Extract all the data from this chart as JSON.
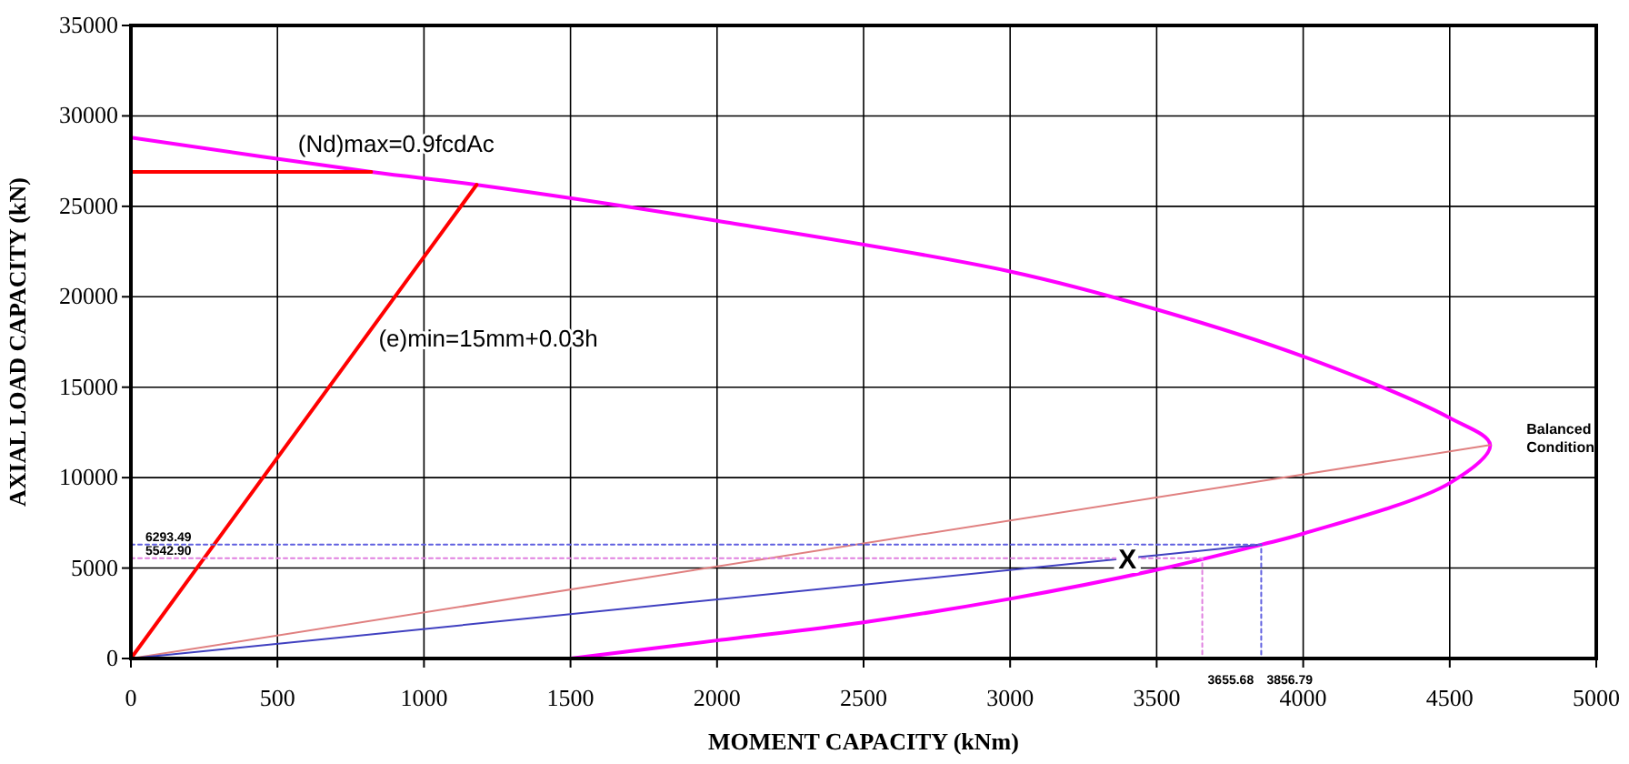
{
  "chart_data": {
    "type": "line",
    "xlabel": "MOMENT CAPACITY (kNm)",
    "ylabel": "AXIAL LOAD CAPACITY (kN)",
    "xlim": [
      0,
      5000
    ],
    "xticks": [
      0,
      500,
      1000,
      1500,
      2000,
      2500,
      3000,
      3500,
      4000,
      4500,
      5000
    ],
    "ylim": [
      0,
      35000
    ],
    "yticks": [
      0,
      5000,
      10000,
      15000,
      20000,
      25000,
      30000,
      35000
    ],
    "grid": true,
    "series": [
      {
        "color": "#ff00ff",
        "line_style": "solid",
        "x": [
          0,
          820,
          1175,
          2000,
          3000,
          3500,
          4000,
          4500,
          4638,
          4500,
          4000,
          3856.79,
          3500,
          3000,
          2500,
          2000,
          1500
        ],
        "values": [
          28800,
          26900,
          26200,
          24200,
          21400,
          19300,
          16700,
          13300,
          11800,
          9700,
          6900,
          6293.49,
          4900,
          3300,
          2000,
          1000,
          0
        ]
      },
      {
        "color": "#ff0000",
        "line_style": "solid",
        "x": [
          0,
          820
        ],
        "values": [
          26900,
          26900
        ]
      },
      {
        "color": "#ff0000",
        "line_style": "solid",
        "x": [
          0,
          1180
        ],
        "values": [
          0,
          26200
        ]
      },
      {
        "color": "#e08080",
        "line_style": "solid",
        "x": [
          0,
          4638
        ],
        "values": [
          0,
          11800
        ]
      },
      {
        "color": "#4040c0",
        "line_style": "solid",
        "x": [
          0,
          3856.79
        ],
        "values": [
          0,
          6293.49
        ]
      },
      {
        "color": "#6060e0",
        "line_style": "dotted",
        "x": [
          0,
          3856.79,
          3856.79
        ],
        "values": [
          6293.49,
          6293.49,
          0
        ]
      },
      {
        "color": "#e080e0",
        "line_style": "dotted",
        "x": [
          0,
          3655.68,
          3655.68
        ],
        "values": [
          5542.9,
          5542.9,
          0
        ]
      }
    ],
    "annotations": [
      "(Nd)max=0.9fcdAc",
      "(e)min=15mm+0.03h",
      {
        "text": "Balanced\nCondition",
        "x": 4638,
        "y": 11800
      },
      {
        "text": "X",
        "x": 3400,
        "y": 5500
      },
      {
        "text": "6293.49",
        "x": 0,
        "y": 6293.49
      },
      {
        "text": "5542.90",
        "x": 0,
        "y": 5542.9
      },
      {
        "text": "3655.68",
        "x": 3655.68,
        "y": 0
      },
      {
        "text": "3856.79",
        "x": 3856.79,
        "y": 0
      }
    ]
  }
}
